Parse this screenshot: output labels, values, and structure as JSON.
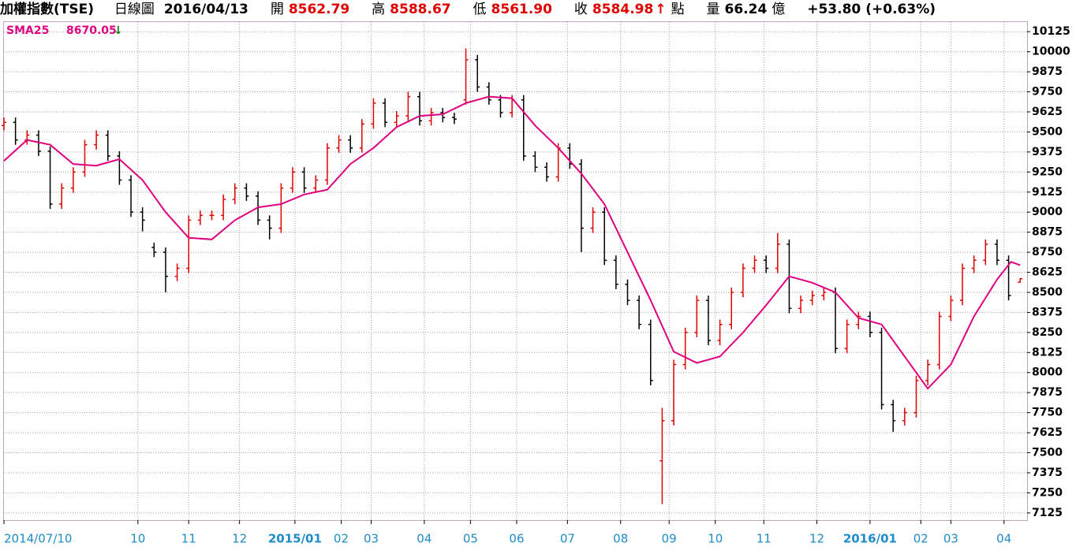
{
  "header": {
    "index": "加權指數(TSE)",
    "period": "日線圖",
    "date": "2016/04/13",
    "open_label": "開",
    "open": "8562.79",
    "high_label": "高",
    "high": "8588.67",
    "low_label": "低",
    "low": "8561.90",
    "close_label": "收",
    "close": "8584.98",
    "unit": "點",
    "volume_label": "量",
    "volume": "66.24",
    "volume_unit": "億",
    "change": "+53.80",
    "change_percent": "(+0.63%)"
  },
  "chart_data": {
    "type": "ohlc",
    "x": [
      0,
      5,
      10,
      15,
      20,
      25,
      30,
      35,
      40,
      45,
      50,
      55,
      60,
      65,
      70,
      75,
      80,
      85,
      90,
      95,
      100,
      105,
      110,
      115,
      120,
      125,
      130,
      135,
      140,
      145,
      150,
      155,
      160,
      165,
      170,
      175,
      180,
      185,
      190,
      195,
      200,
      205,
      210,
      215,
      220,
      225,
      230,
      235,
      240,
      245,
      250,
      255,
      260,
      265,
      270,
      275,
      280,
      285,
      290,
      295,
      300,
      305,
      310,
      315,
      320,
      325,
      330,
      335,
      340,
      345,
      350,
      355,
      360,
      365,
      370,
      375,
      380,
      385,
      390,
      395,
      400,
      405,
      410,
      415,
      420,
      425,
      430,
      435,
      440
    ],
    "open": [
      9540,
      9560,
      9450,
      9480,
      9380,
      9050,
      9150,
      9250,
      9420,
      9480,
      9350,
      9200,
      9000,
      8780,
      8750,
      8600,
      8650,
      8950,
      8980,
      8980,
      9080,
      9150,
      9100,
      8950,
      8900,
      9150,
      9250,
      9150,
      9200,
      9400,
      9450,
      9400,
      9550,
      9680,
      9560,
      9600,
      9720,
      9570,
      9620,
      9590,
      9700,
      9950,
      9780,
      9700,
      9620,
      9700,
      9350,
      9280,
      9220,
      9400,
      9300,
      8900,
      9000,
      8700,
      8550,
      8450,
      8300,
      7450,
      7700,
      8050,
      8250,
      8450,
      8200,
      8300,
      8500,
      8650,
      8700,
      8650,
      8800,
      8400,
      8450,
      8480,
      8500,
      8150,
      8300,
      8350,
      8250,
      7800,
      7700,
      7750,
      7950,
      8050,
      8350,
      8450,
      8650,
      8700,
      8800,
      8700,
      8562.79
    ],
    "high": [
      9590,
      9590,
      9510,
      9510,
      9410,
      9180,
      9280,
      9450,
      9510,
      9510,
      9380,
      9230,
      9030,
      8810,
      8780,
      8680,
      8980,
      9010,
      9010,
      9110,
      9180,
      9180,
      9130,
      8980,
      9180,
      9280,
      9280,
      9230,
      9430,
      9480,
      9480,
      9580,
      9710,
      9710,
      9630,
      9750,
      9750,
      9650,
      9650,
      9620,
      10020,
      9980,
      9810,
      9730,
      9730,
      9730,
      9380,
      9310,
      9430,
      9430,
      9330,
      9030,
      9030,
      8730,
      8580,
      8480,
      8330,
      7780,
      8080,
      8280,
      8480,
      8480,
      8330,
      8530,
      8680,
      8730,
      8730,
      8870,
      8830,
      8480,
      8510,
      8530,
      8530,
      8330,
      8380,
      8380,
      8280,
      7830,
      7780,
      7980,
      8080,
      8380,
      8480,
      8680,
      8730,
      8830,
      8830,
      8730,
      8588.67
    ],
    "low": [
      9510,
      9420,
      9420,
      9350,
      9020,
      9020,
      9120,
      9220,
      9390,
      9320,
      9170,
      8970,
      8880,
      8720,
      8500,
      8570,
      8620,
      8920,
      8950,
      8950,
      9050,
      9070,
      8920,
      8830,
      8870,
      9120,
      9120,
      9120,
      9170,
      9370,
      9370,
      9370,
      9520,
      9530,
      9530,
      9570,
      9540,
      9540,
      9560,
      9550,
      9670,
      9750,
      9670,
      9590,
      9590,
      9320,
      9250,
      9190,
      9190,
      9270,
      8750,
      8870,
      8670,
      8520,
      8420,
      8270,
      7920,
      7180,
      7670,
      8020,
      8220,
      8170,
      8170,
      8270,
      8470,
      8620,
      8620,
      8620,
      8370,
      8370,
      8420,
      8450,
      8120,
      8120,
      8270,
      8220,
      7770,
      7630,
      7670,
      7720,
      7920,
      8020,
      8320,
      8420,
      8620,
      8670,
      8670,
      8450,
      8561.9
    ],
    "close": [
      9560,
      9450,
      9480,
      9380,
      9050,
      9150,
      9250,
      9420,
      9480,
      9350,
      9200,
      9000,
      8950,
      8750,
      8600,
      8650,
      8950,
      8980,
      8980,
      9080,
      9150,
      9100,
      8950,
      8900,
      9150,
      9250,
      9150,
      9200,
      9400,
      9450,
      9400,
      9550,
      9680,
      9560,
      9600,
      9720,
      9570,
      9620,
      9590,
      9580,
      9950,
      9780,
      9700,
      9620,
      9700,
      9350,
      9280,
      9220,
      9400,
      9300,
      8900,
      9000,
      8700,
      8550,
      8450,
      8300,
      7950,
      7700,
      8050,
      8250,
      8450,
      8200,
      8300,
      8500,
      8650,
      8700,
      8650,
      8800,
      8400,
      8450,
      8480,
      8500,
      8150,
      8300,
      8350,
      8250,
      7800,
      7700,
      7750,
      7950,
      8050,
      8350,
      8450,
      8650,
      8700,
      8800,
      8700,
      8480,
      8584.98
    ],
    "up_color": "#e00000",
    "down_color": "#000000",
    "lines": [
      {
        "name": "SMA25",
        "color": "#e0007f",
        "x": [
          0,
          10,
          20,
          30,
          40,
          50,
          60,
          70,
          80,
          90,
          100,
          110,
          120,
          130,
          140,
          150,
          160,
          170,
          180,
          190,
          200,
          210,
          220,
          230,
          240,
          250,
          260,
          270,
          280,
          290,
          300,
          310,
          320,
          330,
          340,
          350,
          360,
          370,
          380,
          390,
          400,
          410,
          420,
          430,
          436,
          440
        ],
        "values": [
          9320,
          9450,
          9420,
          9300,
          9290,
          9330,
          9200,
          9000,
          8840,
          8830,
          8950,
          9030,
          9050,
          9110,
          9140,
          9300,
          9400,
          9530,
          9600,
          9610,
          9680,
          9720,
          9710,
          9540,
          9400,
          9240,
          9050,
          8750,
          8450,
          8130,
          8060,
          8100,
          8250,
          8420,
          8600,
          8560,
          8500,
          8340,
          8300,
          8100,
          7900,
          8050,
          8350,
          8580,
          8690,
          8670.05
        ]
      }
    ],
    "xlim": [
      0,
      443
    ],
    "ylim": [
      7080,
      10185
    ],
    "xticks": [
      {
        "value": 0,
        "label": "2014/07/10"
      },
      {
        "value": 58,
        "label": "10"
      },
      {
        "value": 80,
        "label": "11"
      },
      {
        "value": 102,
        "label": "12"
      },
      {
        "value": 126,
        "label": "2015/01"
      },
      {
        "value": 146,
        "label": "02"
      },
      {
        "value": 159,
        "label": "03"
      },
      {
        "value": 182,
        "label": "04"
      },
      {
        "value": 202,
        "label": "05"
      },
      {
        "value": 222,
        "label": "06"
      },
      {
        "value": 244,
        "label": "07"
      },
      {
        "value": 267,
        "label": "08"
      },
      {
        "value": 288,
        "label": "09"
      },
      {
        "value": 308,
        "label": "10"
      },
      {
        "value": 329,
        "label": "11"
      },
      {
        "value": 352,
        "label": "12"
      },
      {
        "value": 375,
        "label": "2016/01"
      },
      {
        "value": 397,
        "label": "02"
      },
      {
        "value": 410,
        "label": "03"
      },
      {
        "value": 433,
        "label": "04"
      }
    ],
    "yticks": [
      7125,
      7250,
      7375,
      7500,
      7625,
      7750,
      7875,
      8000,
      8125,
      8250,
      8375,
      8500,
      8625,
      8750,
      8875,
      9000,
      9125,
      9250,
      9375,
      9500,
      9625,
      9750,
      9875,
      10000,
      10125
    ],
    "grid": true
  }
}
